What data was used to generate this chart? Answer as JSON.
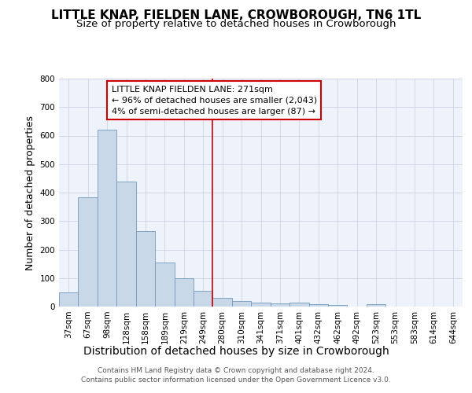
{
  "title": "LITTLE KNAP, FIELDEN LANE, CROWBOROUGH, TN6 1TL",
  "subtitle": "Size of property relative to detached houses in Crowborough",
  "xlabel": "Distribution of detached houses by size in Crowborough",
  "ylabel": "Number of detached properties",
  "categories": [
    "37sqm",
    "67sqm",
    "98sqm",
    "128sqm",
    "158sqm",
    "189sqm",
    "219sqm",
    "249sqm",
    "280sqm",
    "310sqm",
    "341sqm",
    "371sqm",
    "401sqm",
    "432sqm",
    "462sqm",
    "492sqm",
    "523sqm",
    "553sqm",
    "583sqm",
    "614sqm",
    "644sqm"
  ],
  "values": [
    50,
    383,
    620,
    440,
    265,
    155,
    98,
    55,
    30,
    20,
    15,
    10,
    15,
    8,
    5,
    0,
    8,
    0,
    0,
    0,
    0
  ],
  "bar_color": "#c8d8e8",
  "bar_edge_color": "#7099bb",
  "vline_color": "#cc0000",
  "vline_pos": 8.0,
  "ylim": [
    0,
    800
  ],
  "yticks": [
    0,
    100,
    200,
    300,
    400,
    500,
    600,
    700,
    800
  ],
  "annotation_text": "LITTLE KNAP FIELDEN LANE: 271sqm\n← 96% of detached houses are smaller (2,043)\n4% of semi-detached houses are larger (87) →",
  "annotation_box_edge": "#cc0000",
  "footer": "Contains HM Land Registry data © Crown copyright and database right 2024.\nContains public sector information licensed under the Open Government Licence v3.0.",
  "bg_color": "#eef2fb",
  "grid_color": "#c5cde0",
  "title_fontsize": 11,
  "subtitle_fontsize": 9.5,
  "xlabel_fontsize": 10,
  "ylabel_fontsize": 9,
  "tick_fontsize": 7.5,
  "footer_fontsize": 6.5,
  "ann_fontsize": 8
}
